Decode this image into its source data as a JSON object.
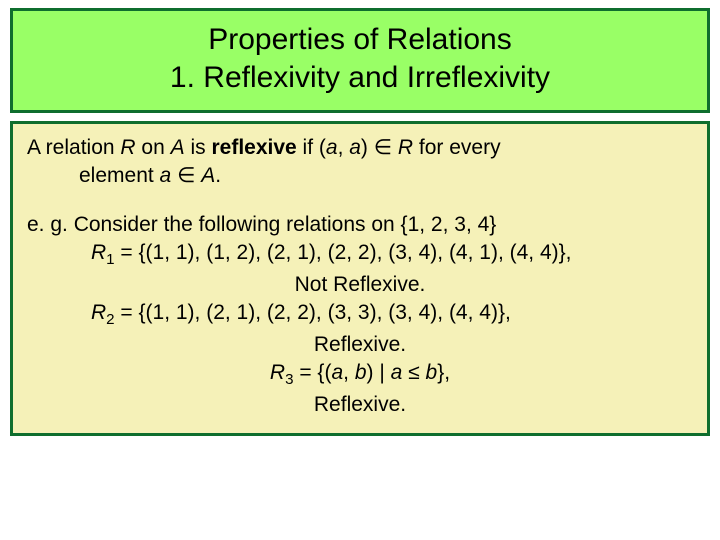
{
  "title": {
    "line1": "Properties of Relations",
    "line2": "1. Reflexivity and Irreflexivity"
  },
  "definition": {
    "prefix": "A relation ",
    "R": "R",
    "on": " on ",
    "A": "A",
    "is": " is ",
    "reflexive": "reflexive",
    "if": " if (",
    "a1": "a",
    "comma": ", ",
    "a2": "a",
    "in": ") ∈ ",
    "R2": "R",
    "forevery": " for every",
    "line2pre": "element ",
    "a3": "a",
    "in2": " ∈ ",
    "A2": "A",
    "period": "."
  },
  "example": {
    "intro": "e. g. Consider the following relations on {1, 2, 3, 4}",
    "r1label": "R",
    "r1sub": "1",
    "r1eq": " = {(1, 1), (1, 2), (2, 1), (2, 2), (3, 4), (4, 1), (4, 4)},",
    "r1res": "Not Reflexive.",
    "r2label": "R",
    "r2sub": "2",
    "r2eq": " = {(1, 1), (2, 1), (2, 2), (3, 3), (3, 4), (4, 4)},",
    "r2res": "Reflexive.",
    "r3label": "R",
    "r3sub": "3",
    "r3eq_pre": " = {(",
    "r3a": "a",
    "r3comma": ", ",
    "r3b": "b",
    "r3mid": ") | ",
    "r3a2": "a",
    "r3le": " ≤ ",
    "r3b2": "b",
    "r3post": "},",
    "r3res": "Reflexive."
  },
  "colors": {
    "title_bg": "#99ff66",
    "body_bg": "#f5f1b8",
    "border": "#0f6e2e",
    "text": "#000000"
  }
}
